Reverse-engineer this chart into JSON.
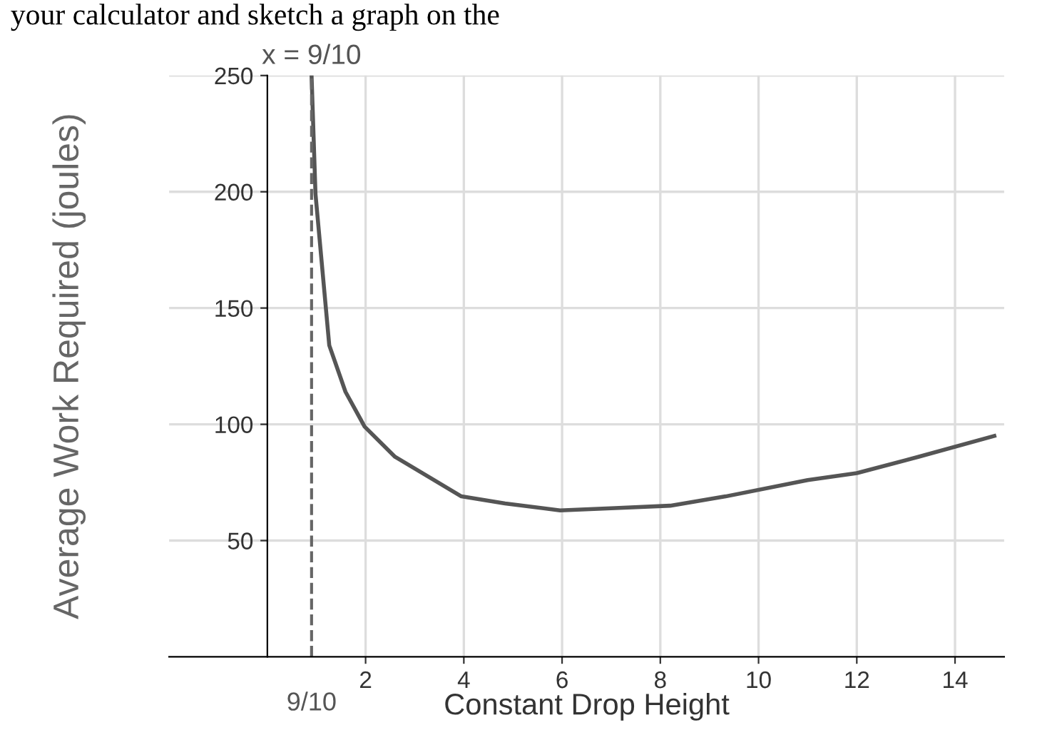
{
  "chart_data": {
    "type": "line",
    "xlabel": "Constant Drop Height",
    "ylabel": "Average Work Required (joules)",
    "annotations": [
      "your calculator and sketch a graph on the",
      "x = 9/10",
      "9/10"
    ],
    "x": [
      0.9,
      0.98,
      1.26,
      1.59,
      1.98,
      2.6,
      3.16,
      3.95,
      4.84,
      5.96,
      7.08,
      8.2,
      9.33,
      11.0,
      12.0,
      13.25,
      14.8
    ],
    "series": [
      {
        "color": "#555555",
        "values": [
          250,
          199,
          134,
          114,
          99,
          86,
          79,
          69,
          66,
          63,
          64,
          65,
          69,
          76,
          79,
          86,
          95
        ]
      }
    ],
    "xlim": [
      -2,
      15
    ],
    "ylim": [
      0,
      250
    ],
    "xticks": [
      2,
      4,
      6,
      8,
      10,
      12,
      14
    ],
    "yticks": [
      50,
      100,
      150,
      200,
      250
    ],
    "ref_lines": [
      {
        "axis": "x",
        "value": 0.9,
        "color": "#666666",
        "line_style": "dashed"
      }
    ],
    "grid": true,
    "marker": "none",
    "line_style": "solid",
    "legend": false
  }
}
